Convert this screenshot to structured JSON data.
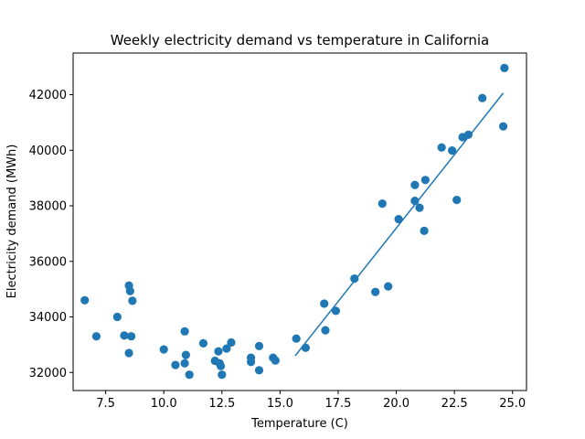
{
  "chart_data": {
    "type": "scatter",
    "title": "Weekly electricity demand vs temperature in California",
    "xlabel": "Temperature (C)",
    "ylabel": "Electricity demand (MWh)",
    "xlim": [
      6.1,
      25.6
    ],
    "ylim": [
      31350,
      43500
    ],
    "xticks": [
      7.5,
      10.0,
      12.5,
      15.0,
      17.5,
      20.0,
      22.5,
      25.0
    ],
    "xtick_labels": [
      "7.5",
      "10.0",
      "12.5",
      "15.0",
      "17.5",
      "20.0",
      "22.5",
      "25.0"
    ],
    "yticks": [
      32000,
      34000,
      36000,
      38000,
      40000,
      42000
    ],
    "ytick_labels": [
      "32000",
      "34000",
      "36000",
      "38000",
      "40000",
      "42000"
    ],
    "grid": false,
    "color": "#1f77b4",
    "series": [
      {
        "kind": "scatter",
        "points": [
          [
            6.6,
            34600
          ],
          [
            7.1,
            33300
          ],
          [
            8.0,
            34000
          ],
          [
            8.3,
            33330
          ],
          [
            8.5,
            35130
          ],
          [
            8.55,
            34930
          ],
          [
            8.5,
            32700
          ],
          [
            8.6,
            33300
          ],
          [
            8.65,
            34580
          ],
          [
            10.0,
            32830
          ],
          [
            10.5,
            32270
          ],
          [
            10.9,
            33480
          ],
          [
            10.9,
            32330
          ],
          [
            10.95,
            32630
          ],
          [
            11.1,
            31920
          ],
          [
            11.7,
            33050
          ],
          [
            12.2,
            32420
          ],
          [
            12.35,
            32760
          ],
          [
            12.4,
            32330
          ],
          [
            12.45,
            32230
          ],
          [
            12.5,
            31920
          ],
          [
            12.7,
            32860
          ],
          [
            12.9,
            33080
          ],
          [
            13.75,
            32530
          ],
          [
            13.75,
            32380
          ],
          [
            14.1,
            32950
          ],
          [
            14.1,
            32080
          ],
          [
            14.7,
            32530
          ],
          [
            14.8,
            32430
          ],
          [
            15.7,
            33220
          ],
          [
            16.1,
            32890
          ],
          [
            16.9,
            34480
          ],
          [
            16.95,
            33520
          ],
          [
            17.4,
            34220
          ],
          [
            18.2,
            35380
          ],
          [
            19.1,
            34900
          ],
          [
            19.4,
            38080
          ],
          [
            19.65,
            35100
          ],
          [
            20.1,
            37520
          ],
          [
            20.8,
            38750
          ],
          [
            20.8,
            38180
          ],
          [
            21.0,
            37930
          ],
          [
            21.25,
            38930
          ],
          [
            21.2,
            37100
          ],
          [
            21.95,
            40100
          ],
          [
            22.4,
            39990
          ],
          [
            22.6,
            38210
          ],
          [
            22.85,
            40470
          ],
          [
            23.1,
            40560
          ],
          [
            23.7,
            41880
          ],
          [
            24.6,
            40860
          ],
          [
            24.65,
            42960
          ]
        ]
      },
      {
        "kind": "line",
        "points": [
          [
            15.65,
            32600
          ],
          [
            24.6,
            42060
          ]
        ]
      }
    ]
  }
}
